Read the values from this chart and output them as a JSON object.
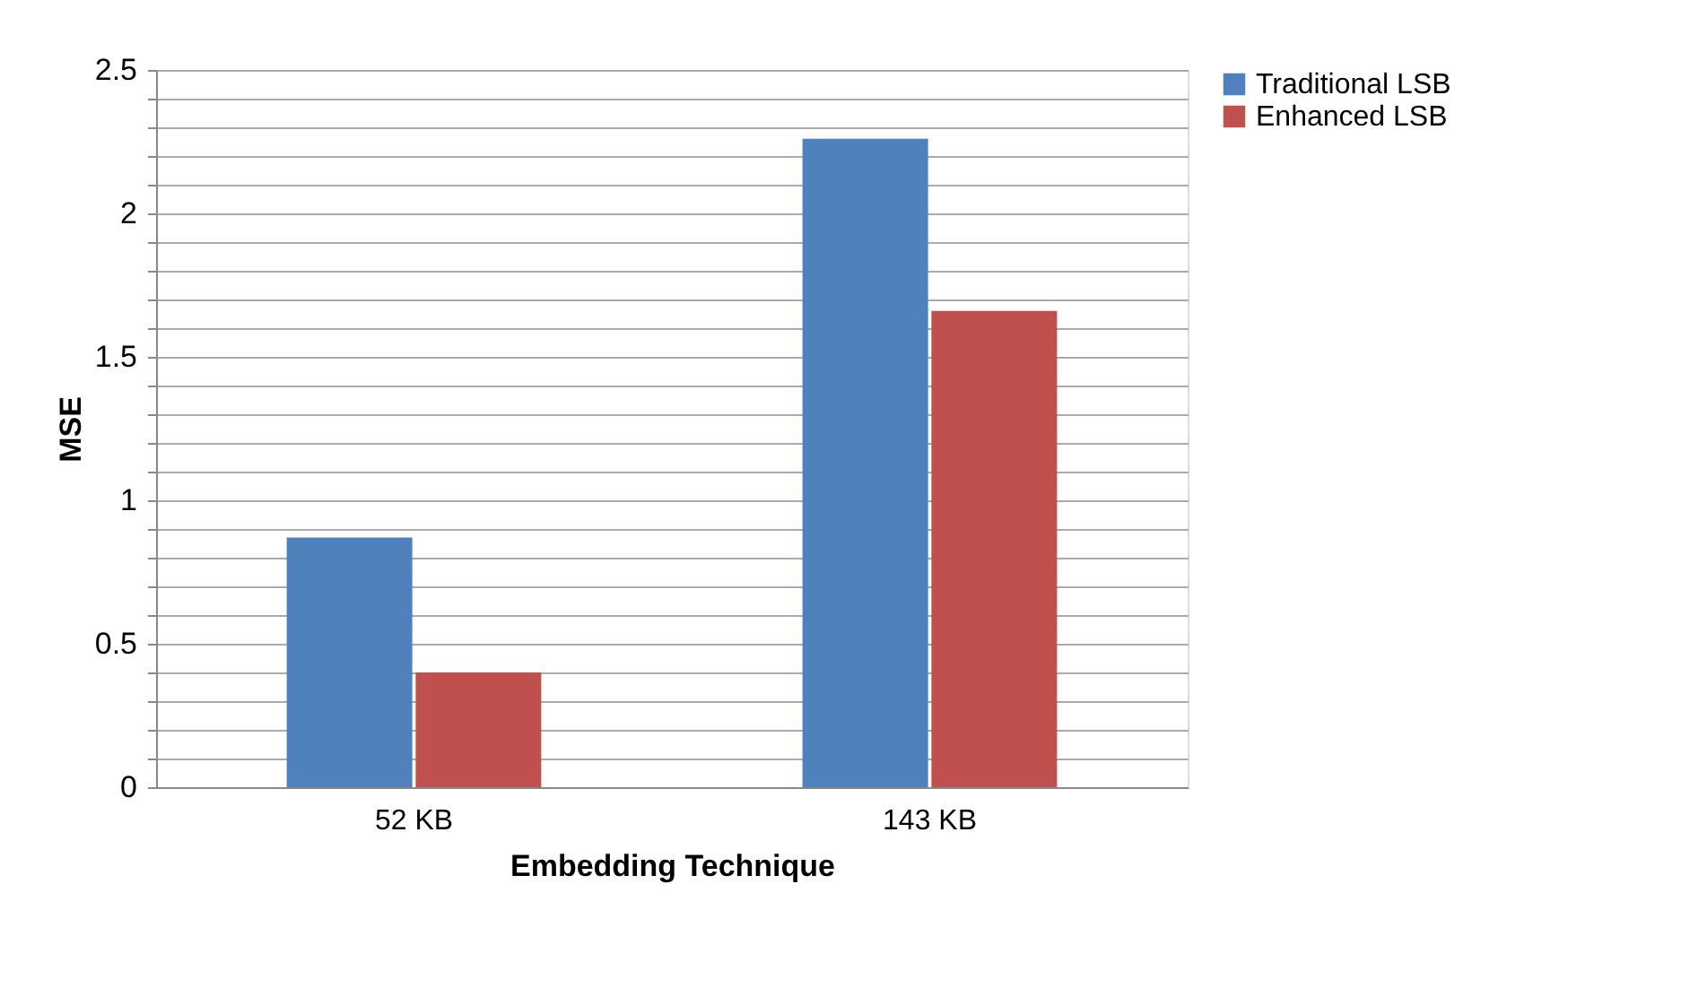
{
  "chart_data": {
    "type": "bar",
    "xlabel": "Embedding Technique",
    "ylabel": "MSE",
    "categories": [
      "52 KB",
      "143 KB"
    ],
    "series": [
      {
        "name": "Traditional LSB",
        "color": "#4f81bd",
        "values": [
          0.87,
          2.26
        ]
      },
      {
        "name": "Enhanced LSB",
        "color": "#c0504d",
        "values": [
          0.4,
          1.66
        ]
      }
    ],
    "ylim": [
      0,
      2.5
    ],
    "yticks": [
      0,
      {
        "value": 0.1,
        "label": null
      },
      {
        "value": 0.2,
        "label": null
      },
      {
        "value": 0.3,
        "label": null
      },
      {
        "value": 0.4,
        "label": null
      },
      0.5,
      {
        "value": 0.6,
        "label": null
      },
      {
        "value": 0.7,
        "label": null
      },
      {
        "value": 0.8,
        "label": null
      },
      {
        "value": 0.9,
        "label": null
      },
      1,
      {
        "value": 1.1,
        "label": null
      },
      {
        "value": 1.2,
        "label": null
      },
      {
        "value": 1.3,
        "label": null
      },
      {
        "value": 1.4,
        "label": null
      },
      1.5,
      {
        "value": 1.6,
        "label": null
      },
      {
        "value": 1.7,
        "label": null
      },
      {
        "value": 1.8,
        "label": null
      },
      {
        "value": 1.9,
        "label": null
      },
      2,
      {
        "value": 2.1,
        "label": null
      },
      {
        "value": 2.2,
        "label": null
      },
      {
        "value": 2.3,
        "label": null
      },
      {
        "value": 2.4,
        "label": null
      },
      2.5
    ],
    "grid": "y",
    "legend": "right"
  }
}
